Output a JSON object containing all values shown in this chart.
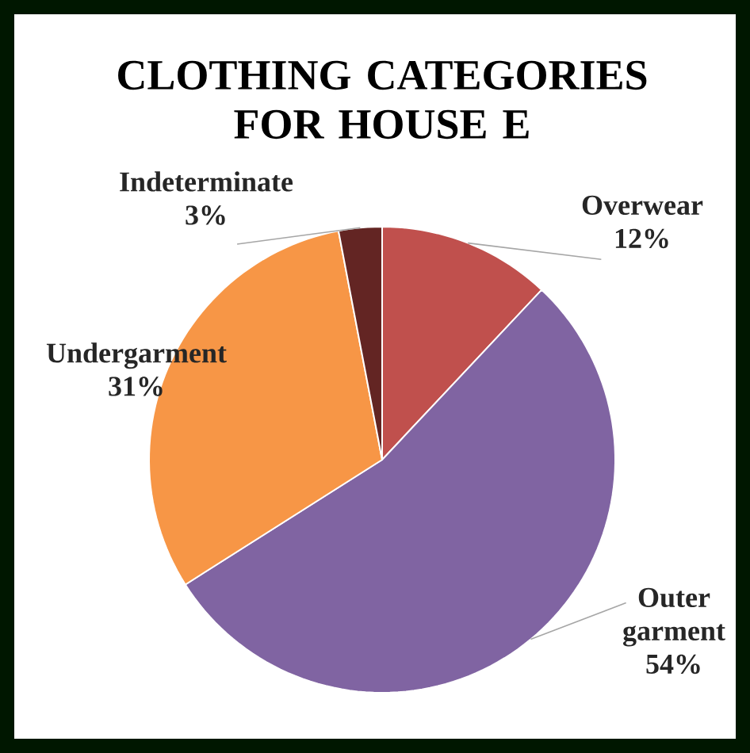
{
  "chart_data": {
    "type": "pie",
    "title": "CLOTHING CATEGORIES FOR HOUSE E",
    "categories": [
      "Overwear",
      "Outer garment",
      "Undergarment",
      "Indeterminate"
    ],
    "values": [
      12,
      54,
      31,
      3
    ],
    "value_labels": [
      "12%",
      "54%",
      "31%",
      "3%"
    ],
    "colors": [
      "#c0504d",
      "#8064a2",
      "#f79646",
      "#632523"
    ]
  }
}
